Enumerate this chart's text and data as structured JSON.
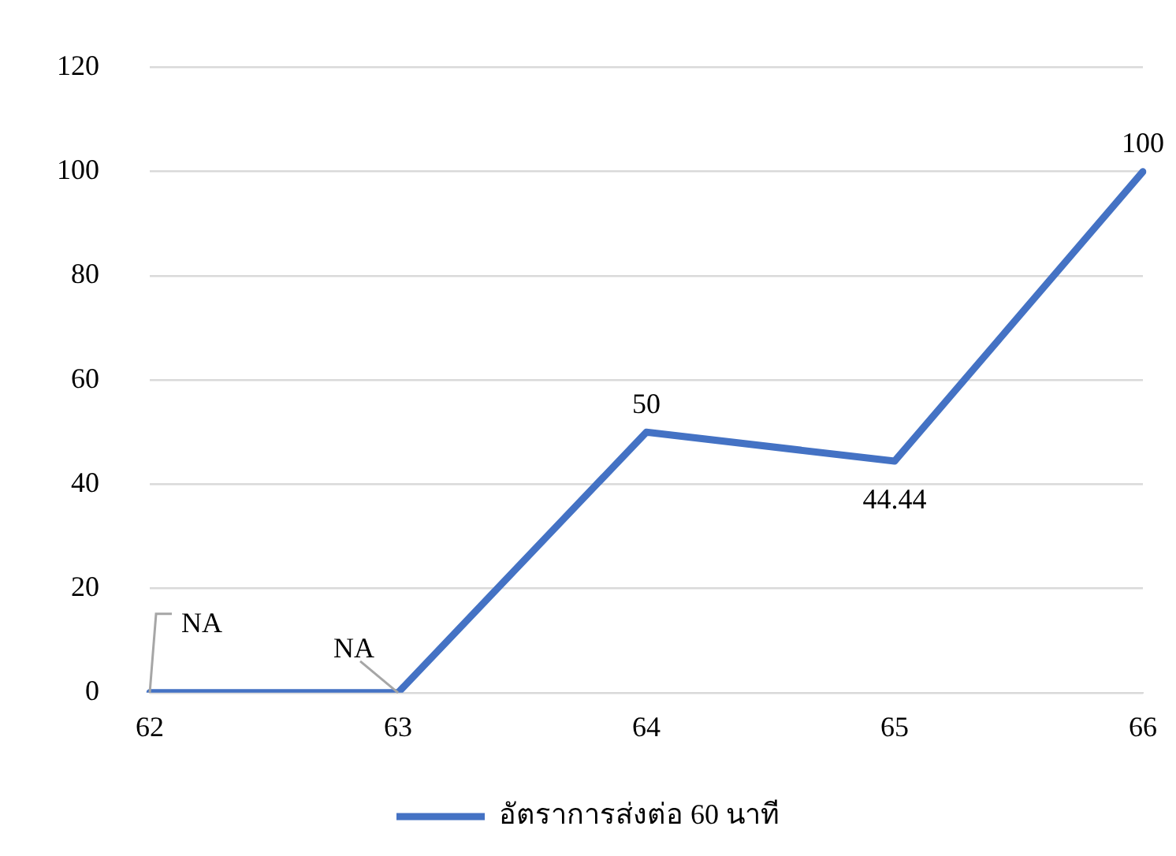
{
  "chart_data": {
    "type": "line",
    "categories": [
      "62",
      "63",
      "64",
      "65",
      "66"
    ],
    "series": [
      {
        "name": "อัตราการส่งต่อ 60 นาที",
        "color": "#4472c4",
        "values": [
          0,
          0,
          50,
          44.44,
          100
        ],
        "value_labels": [
          "NA",
          "NA",
          "50",
          "44.44",
          "100"
        ]
      }
    ],
    "ylim": [
      0,
      120
    ],
    "yticks": [
      0,
      20,
      40,
      60,
      80,
      100,
      120
    ],
    "grid": "y",
    "legend": "bottom",
    "marker": "none",
    "line_style": "solid"
  }
}
